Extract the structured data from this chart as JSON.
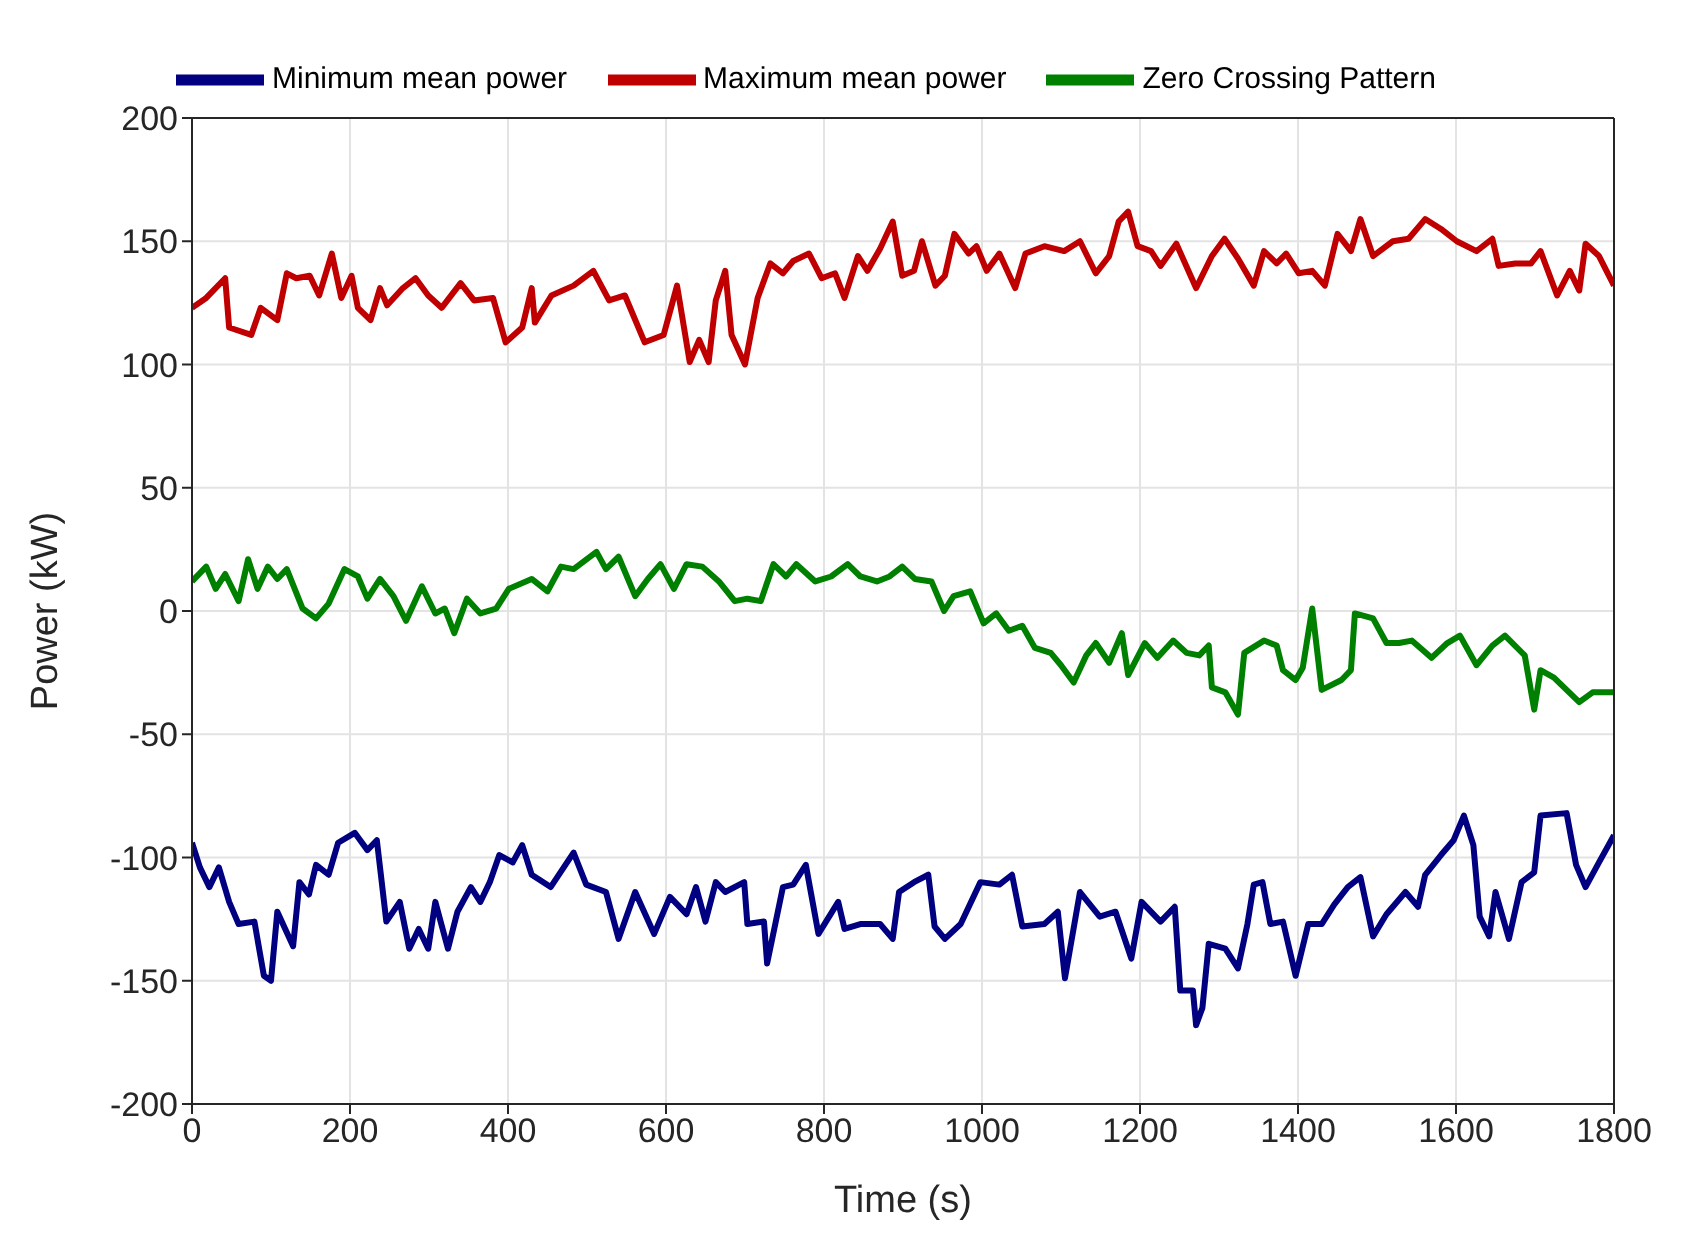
{
  "chart_data": {
    "type": "line",
    "xlabel": "Time (s)",
    "ylabel": "Power (kW)",
    "xlim": [
      0,
      1800
    ],
    "xticks": [
      0,
      200,
      400,
      600,
      800,
      1000,
      1200,
      1400,
      1600,
      1800
    ],
    "ylim": [
      -200,
      200
    ],
    "yticks": [
      -200,
      -150,
      -100,
      -50,
      0,
      50,
      100,
      150,
      200
    ],
    "grid": true,
    "legend": "top",
    "marker": "none",
    "line_style": "solid",
    "series": [
      {
        "name": "Minimum mean power",
        "color": "#000080",
        "x": [
          0,
          10,
          22,
          34,
          47,
          59,
          79,
          91,
          100,
          108,
          128,
          136,
          148,
          157,
          173,
          185,
          206,
          222,
          234,
          246,
          263,
          275,
          287,
          299,
          308,
          324,
          336,
          353,
          365,
          377,
          389,
          406,
          418,
          430,
          454,
          483,
          499,
          524,
          540,
          561,
          585,
          605,
          626,
          638,
          650,
          663,
          675,
          699,
          703,
          724,
          728,
          748,
          761,
          777,
          793,
          818,
          826,
          846,
          871,
          887,
          895,
          914,
          932,
          940,
          953,
          973,
          998,
          1022,
          1038,
          1051,
          1079,
          1096,
          1105,
          1124,
          1149,
          1169,
          1189,
          1202,
          1226,
          1244,
          1251,
          1267,
          1271,
          1279,
          1287,
          1308,
          1324,
          1336,
          1344,
          1355,
          1365,
          1381,
          1397,
          1413,
          1430,
          1446,
          1463,
          1479,
          1495,
          1512,
          1536,
          1552,
          1561,
          1581,
          1597,
          1610,
          1622,
          1630,
          1642,
          1650,
          1667,
          1683,
          1699,
          1707,
          1740,
          1752,
          1764,
          1781,
          1800
        ],
        "values": [
          -94,
          -104,
          -112,
          -104,
          -118,
          -127,
          -126,
          -148,
          -150,
          -122,
          -136,
          -110,
          -115,
          -103,
          -107,
          -94,
          -90,
          -97,
          -93,
          -126,
          -118,
          -137,
          -129,
          -137,
          -118,
          -137,
          -122,
          -112,
          -118,
          -110,
          -99,
          -102,
          -95,
          -107,
          -112,
          -98,
          -111,
          -114,
          -133,
          -114,
          -131,
          -116,
          -123,
          -112,
          -126,
          -110,
          -114,
          -110,
          -127,
          -126,
          -143,
          -112,
          -111,
          -103,
          -131,
          -118,
          -129,
          -127,
          -127,
          -133,
          -114,
          -110,
          -107,
          -128,
          -133,
          -127,
          -110,
          -111,
          -107,
          -128,
          -127,
          -122,
          -149,
          -114,
          -124,
          -122,
          -141,
          -118,
          -126,
          -120,
          -154,
          -154,
          -168,
          -161,
          -135,
          -137,
          -145,
          -127,
          -111,
          -110,
          -127,
          -126,
          -148,
          -127,
          -127,
          -119,
          -112,
          -108,
          -132,
          -123,
          -114,
          -120,
          -107,
          -99,
          -93,
          -83,
          -95,
          -124,
          -132,
          -114,
          -133,
          -110,
          -106,
          -83,
          -82,
          -103,
          -112,
          -102,
          -91
        ]
      },
      {
        "name": "Maximum mean power",
        "color": "#c00000",
        "x": [
          0,
          18,
          42,
          47,
          75,
          87,
          108,
          120,
          132,
          149,
          161,
          177,
          189,
          202,
          210,
          226,
          238,
          247,
          267,
          283,
          299,
          316,
          340,
          357,
          381,
          397,
          418,
          430,
          434,
          455,
          483,
          508,
          528,
          548,
          573,
          597,
          614,
          630,
          642,
          654,
          663,
          675,
          683,
          700,
          716,
          732,
          748,
          761,
          781,
          797,
          814,
          826,
          843,
          855,
          871,
          887,
          899,
          914,
          924,
          941,
          953,
          965,
          983,
          993,
          1006,
          1022,
          1042,
          1055,
          1079,
          1104,
          1124,
          1144,
          1161,
          1173,
          1185,
          1197,
          1214,
          1226,
          1246,
          1271,
          1291,
          1307,
          1324,
          1344,
          1357,
          1373,
          1385,
          1401,
          1418,
          1434,
          1450,
          1467,
          1479,
          1495,
          1520,
          1540,
          1561,
          1581,
          1601,
          1626,
          1646,
          1654,
          1675,
          1695,
          1707,
          1728,
          1744,
          1756,
          1764,
          1781,
          1800
        ],
        "values": [
          123,
          127,
          135,
          115,
          112,
          123,
          118,
          137,
          135,
          136,
          128,
          145,
          127,
          136,
          123,
          118,
          131,
          124,
          131,
          135,
          128,
          123,
          133,
          126,
          127,
          109,
          115,
          131,
          117,
          128,
          132,
          138,
          126,
          128,
          109,
          112,
          132,
          101,
          110,
          101,
          126,
          138,
          112,
          100,
          127,
          141,
          137,
          142,
          145,
          135,
          137,
          127,
          144,
          138,
          147,
          158,
          136,
          138,
          150,
          132,
          136,
          153,
          145,
          148,
          138,
          145,
          131,
          145,
          148,
          146,
          150,
          137,
          144,
          158,
          162,
          148,
          146,
          140,
          149,
          131,
          144,
          151,
          143,
          132,
          146,
          141,
          145,
          137,
          138,
          132,
          153,
          146,
          159,
          144,
          150,
          151,
          159,
          155,
          150,
          146,
          151,
          140,
          141,
          141,
          146,
          128,
          138,
          130,
          149,
          144,
          132
        ]
      },
      {
        "name": "Zero Crossing Pattern",
        "color": "#008000",
        "x": [
          0,
          18,
          30,
          42,
          59,
          71,
          83,
          96,
          108,
          120,
          140,
          157,
          173,
          193,
          210,
          222,
          238,
          255,
          271,
          291,
          308,
          320,
          332,
          348,
          365,
          385,
          401,
          430,
          450,
          467,
          483,
          512,
          524,
          540,
          561,
          577,
          593,
          610,
          626,
          646,
          667,
          687,
          703,
          720,
          736,
          752,
          765,
          789,
          809,
          830,
          846,
          867,
          883,
          899,
          915,
          936,
          952,
          964,
          985,
          1002,
          1018,
          1034,
          1051,
          1067,
          1087,
          1100,
          1116,
          1132,
          1144,
          1161,
          1177,
          1185,
          1206,
          1222,
          1242,
          1259,
          1275,
          1287,
          1291,
          1308,
          1324,
          1332,
          1357,
          1373,
          1381,
          1397,
          1406,
          1418,
          1430,
          1455,
          1467,
          1472,
          1495,
          1512,
          1528,
          1544,
          1569,
          1589,
          1605,
          1626,
          1646,
          1662,
          1687,
          1699,
          1707,
          1724,
          1740,
          1756,
          1773,
          1800
        ],
        "values": [
          12,
          18,
          9,
          15,
          4,
          21,
          9,
          18,
          13,
          17,
          1,
          -3,
          3,
          17,
          14,
          5,
          13,
          6,
          -4,
          10,
          -1,
          1,
          -9,
          5,
          -1,
          1,
          9,
          13,
          8,
          18,
          17,
          24,
          17,
          22,
          6,
          13,
          19,
          9,
          19,
          18,
          12,
          4,
          5,
          4,
          19,
          14,
          19,
          12,
          14,
          19,
          14,
          12,
          14,
          18,
          13,
          12,
          0,
          6,
          8,
          -5,
          -1,
          -8,
          -6,
          -15,
          -17,
          -22,
          -29,
          -18,
          -13,
          -21,
          -9,
          -26,
          -13,
          -19,
          -12,
          -17,
          -18,
          -14,
          -31,
          -33,
          -42,
          -17,
          -12,
          -14,
          -24,
          -28,
          -23,
          1,
          -32,
          -28,
          -24,
          -1,
          -3,
          -13,
          -13,
          -12,
          -19,
          -13,
          -10,
          -22,
          -14,
          -10,
          -18,
          -40,
          -24,
          -27,
          -32,
          -37,
          -33,
          -33
        ]
      }
    ]
  }
}
